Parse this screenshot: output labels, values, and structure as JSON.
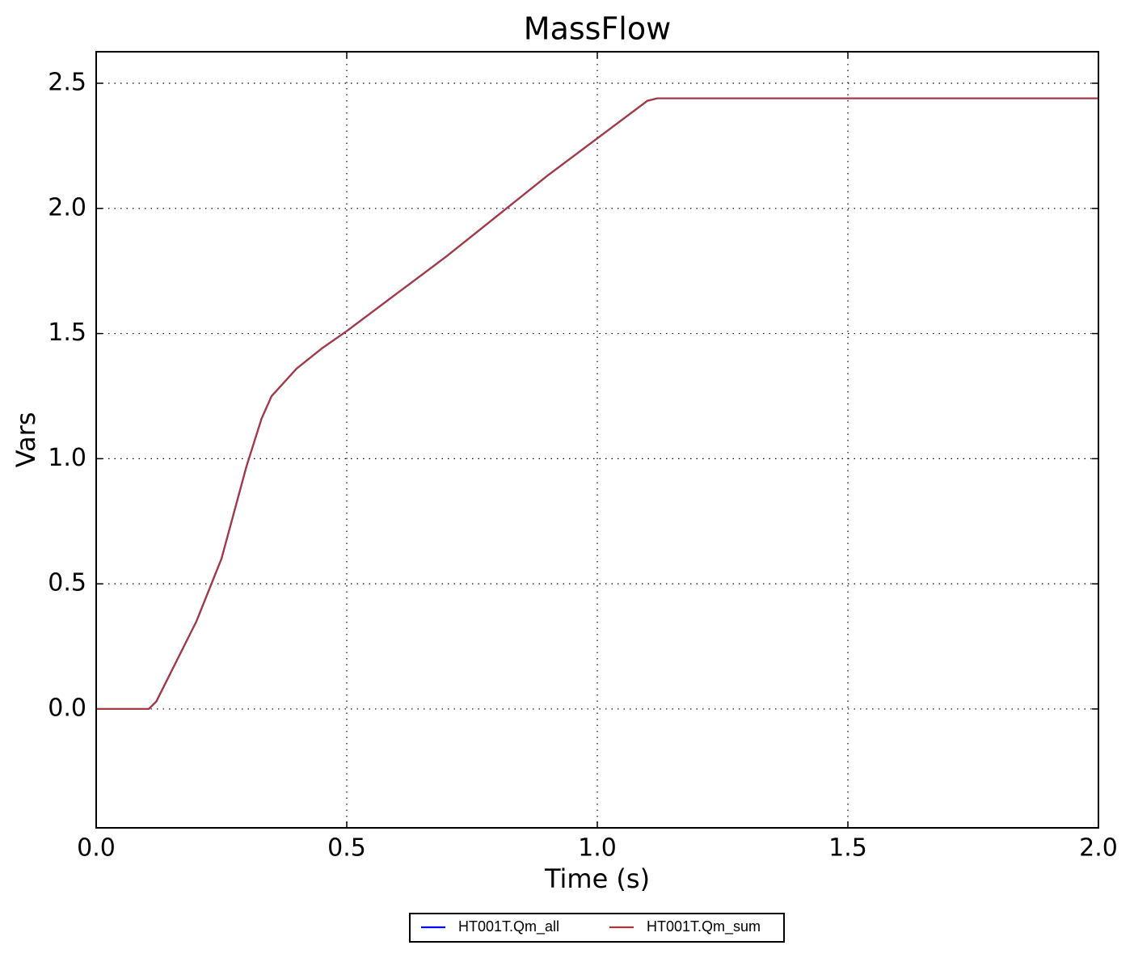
{
  "chart_data": {
    "type": "line",
    "title": "MassFlow",
    "x_label": "Time (s)",
    "y_label": "Vars",
    "x": [
      0,
      0.1,
      0.105,
      0.12,
      0.15,
      0.2,
      0.25,
      0.3,
      0.33,
      0.35,
      0.4,
      0.45,
      0.5,
      0.6,
      0.7,
      0.8,
      0.9,
      1.0,
      1.1,
      1.12,
      1.2,
      1.5,
      2.0
    ],
    "series": [
      {
        "name": "HT001T.Qm_all",
        "color": "#0000ff",
        "values": [
          0,
          0,
          0,
          0.03,
          0.15,
          0.35,
          0.6,
          0.97,
          1.16,
          1.25,
          1.36,
          1.44,
          1.51,
          1.66,
          1.81,
          1.97,
          2.13,
          2.28,
          2.43,
          2.44,
          2.44,
          2.44,
          2.44
        ]
      },
      {
        "name": "HT001T.Qm_sum",
        "color": "#a83a3a",
        "values": [
          0,
          0,
          0,
          0.03,
          0.15,
          0.35,
          0.6,
          0.97,
          1.16,
          1.25,
          1.36,
          1.44,
          1.51,
          1.66,
          1.81,
          1.97,
          2.13,
          2.28,
          2.43,
          2.44,
          2.44,
          2.44,
          2.44
        ]
      }
    ],
    "xlim": [
      0,
      2
    ],
    "ylim": [
      -0.475,
      2.626
    ],
    "xticks": [
      {
        "value": 0,
        "label": "0.0"
      },
      {
        "value": 0.5,
        "label": "0.5"
      },
      {
        "value": 1,
        "label": "1.0"
      },
      {
        "value": 1.5,
        "label": "1.5"
      },
      {
        "value": 2,
        "label": "2.0"
      }
    ],
    "yticks": [
      {
        "value": 0,
        "label": "0.0"
      },
      {
        "value": 0.5,
        "label": "0.5"
      },
      {
        "value": 1,
        "label": "1.0"
      },
      {
        "value": 1.5,
        "label": "1.5"
      },
      {
        "value": 2,
        "label": "2.0"
      },
      {
        "value": 2.5,
        "label": "2.5"
      }
    ],
    "grid": true,
    "legend": "bottom"
  }
}
